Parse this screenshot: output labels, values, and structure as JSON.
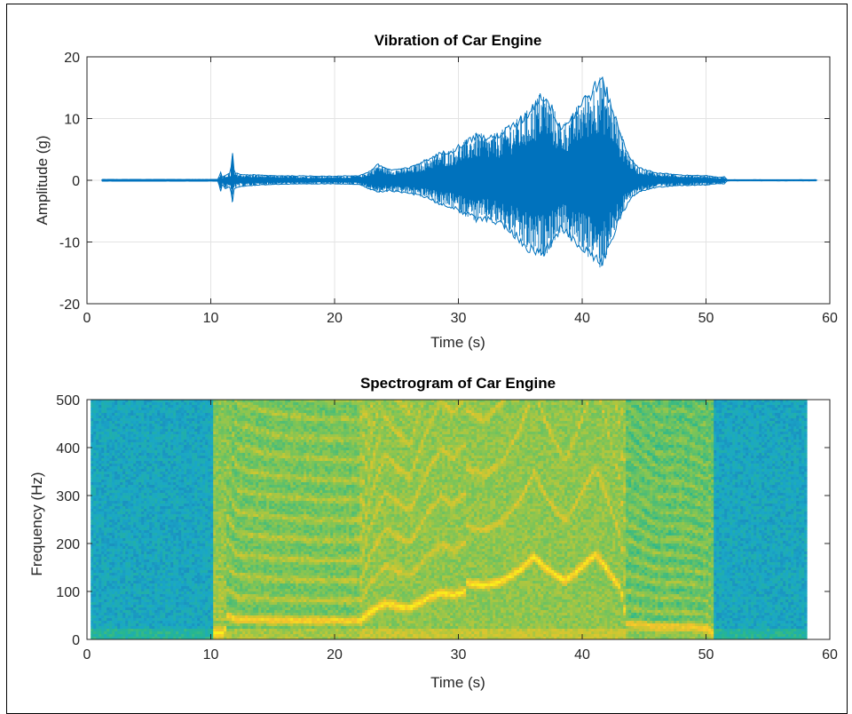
{
  "chart_data": [
    {
      "type": "line",
      "title": "Vibration of Car Engine",
      "xlabel": "Time (s)",
      "ylabel": "Amplitude (g)",
      "xlim": [
        0,
        60
      ],
      "ylim": [
        -20,
        20
      ],
      "xticks": [
        "0",
        "10",
        "20",
        "30",
        "40",
        "50",
        "60"
      ],
      "yticks": [
        "-20",
        "-10",
        "0",
        "10",
        "20"
      ],
      "grid": true,
      "color": "#0072bd",
      "envelope": {
        "t": [
          1.2,
          10.6,
          10.8,
          10.95,
          11.1,
          11.6,
          11.75,
          11.9,
          12.5,
          15,
          20,
          22,
          22.8,
          23.5,
          24.5,
          26,
          27.5,
          28.5,
          29.5,
          30.5,
          31.5,
          32.5,
          33.5,
          34.5,
          35.5,
          36.3,
          36.9,
          37.5,
          38.3,
          39.2,
          40,
          40.8,
          41.5,
          42.2,
          43,
          43.8,
          44.5,
          46,
          48,
          50,
          51,
          51.5,
          51.7,
          53,
          56,
          59
        ],
        "upper": [
          0.15,
          0.15,
          1.4,
          0.4,
          0.8,
          1.2,
          5.2,
          1.3,
          1,
          0.8,
          0.7,
          0.8,
          1.5,
          2.7,
          1.8,
          2.1,
          3.6,
          4.6,
          5.2,
          6.5,
          7.8,
          7.2,
          8.2,
          9.6,
          11.3,
          13.8,
          15,
          12.6,
          9.2,
          10.9,
          13.6,
          15.5,
          17.5,
          14.2,
          8.5,
          4.2,
          2.2,
          1.3,
          0.9,
          0.8,
          0.5,
          0.6,
          0.1,
          0.1,
          0.1,
          0.1
        ],
        "lower": [
          -0.15,
          -0.15,
          -2,
          -0.5,
          -1.4,
          -1.2,
          -4.1,
          -1.3,
          -1,
          -0.7,
          -0.6,
          -0.7,
          -1.5,
          -2.1,
          -1.8,
          -2.2,
          -3,
          -4.1,
          -4.6,
          -5.8,
          -6.8,
          -6.7,
          -7.7,
          -9.4,
          -11.6,
          -12.5,
          -12.4,
          -11.1,
          -8.3,
          -10.1,
          -11.6,
          -13.1,
          -14.7,
          -11.4,
          -6.6,
          -3.5,
          -2,
          -1.2,
          -0.9,
          -0.8,
          -0.6,
          -0.6,
          -0.1,
          -0.1,
          -0.1,
          -0.1
        ]
      }
    },
    {
      "type": "heatmap",
      "title": "Spectrogram of Car Engine",
      "xlabel": "Time (s)",
      "ylabel": "Frequency (Hz)",
      "xlim": [
        0,
        60
      ],
      "ylim": [
        0,
        500
      ],
      "xticks": [
        "0",
        "10",
        "20",
        "30",
        "40",
        "50",
        "60"
      ],
      "yticks": [
        "0",
        "100",
        "200",
        "300",
        "400",
        "500"
      ],
      "data_xrange": [
        0.3,
        58
      ],
      "colormap": [
        "#1a6fb3",
        "#1aa7c7",
        "#27b78f",
        "#78c45a",
        "#c7c733",
        "#f5c32c",
        "#f9f01a"
      ],
      "fundamental": {
        "t": [
          10.2,
          11,
          11.2,
          12,
          15,
          19,
          22,
          22.8,
          24,
          25,
          26,
          27.5,
          28.5,
          29.5,
          30.5,
          30.6,
          32,
          33.5,
          35,
          36,
          37,
          38.5,
          39.5,
          40.5,
          41,
          42,
          43,
          43.5,
          46,
          48,
          50,
          50.5,
          51
        ],
        "hz": [
          15,
          15,
          52,
          45,
          43,
          42,
          42,
          60,
          78,
          72,
          68,
          90,
          100,
          95,
          103,
          120,
          115,
          125,
          150,
          175,
          150,
          125,
          145,
          170,
          180,
          145,
          110,
          35,
          30,
          30,
          28,
          15,
          10
        ]
      }
    }
  ]
}
